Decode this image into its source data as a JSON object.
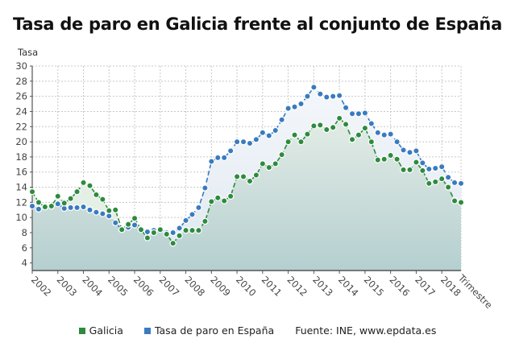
{
  "chart_data": {
    "type": "area",
    "title": "Tasa de paro en Galicia frente al conjunto de España",
    "xlabel": "Trimestre",
    "ylabel": "Tasa",
    "ylim": [
      3,
      30
    ],
    "yticks": [
      4,
      6,
      8,
      10,
      12,
      14,
      16,
      18,
      20,
      22,
      24,
      26,
      28,
      30
    ],
    "x_tick_labels": [
      "2002",
      "2003",
      "2004",
      "2005",
      "2006",
      "2007",
      "2008",
      "2009",
      "2010",
      "2011",
      "2012",
      "2013",
      "2014",
      "2015",
      "2016",
      "2017",
      "2018"
    ],
    "x_axis_title_visible": "Trimestre",
    "grid": true,
    "legend_position": "bottom",
    "x_start": "2002 Q1",
    "x_frequency": "quarterly",
    "series": [
      {
        "name": "Galicia",
        "color": "#2e8b3e",
        "values": [
          13.4,
          12.0,
          11.4,
          11.5,
          12.8,
          11.9,
          12.5,
          13.4,
          14.6,
          14.2,
          13.0,
          12.4,
          10.9,
          11.0,
          8.4,
          9.1,
          9.9,
          8.4,
          7.3,
          8.0,
          8.4,
          7.8,
          6.6,
          7.6,
          8.3,
          8.3,
          8.3,
          9.5,
          12.1,
          12.6,
          12.2,
          12.8,
          15.4,
          15.4,
          14.8,
          15.6,
          17.1,
          16.6,
          17.1,
          18.3,
          20.0,
          20.9,
          20.0,
          21.0,
          22.1,
          22.2,
          21.6,
          21.9,
          23.1,
          22.3,
          20.3,
          20.9,
          21.8,
          20.0,
          17.6,
          17.7,
          18.2,
          17.7,
          16.3,
          16.3,
          17.3,
          16.2,
          14.5,
          14.7,
          15.1,
          14.0,
          12.2,
          12.0
        ]
      },
      {
        "name": "Tasa de paro en España",
        "color": "#3a7bbf",
        "values": [
          11.5,
          11.1,
          11.4,
          11.5,
          11.8,
          11.2,
          11.3,
          11.3,
          11.4,
          11.0,
          10.7,
          10.5,
          10.2,
          9.3,
          8.4,
          8.7,
          9.0,
          8.5,
          8.1,
          8.3,
          8.5,
          8.0,
          8.0,
          8.6,
          9.6,
          10.4,
          11.3,
          13.9,
          17.4,
          17.9,
          17.9,
          18.8,
          20.0,
          20.0,
          19.8,
          20.3,
          21.2,
          20.8,
          21.5,
          22.9,
          24.4,
          24.6,
          25.0,
          26.0,
          27.2,
          26.3,
          25.9,
          26.0,
          26.1,
          24.5,
          23.7,
          23.7,
          23.8,
          22.4,
          21.2,
          20.9,
          21.0,
          20.0,
          18.9,
          18.6,
          18.8,
          17.2,
          16.4,
          16.5,
          16.7,
          15.3,
          14.6,
          14.5
        ]
      }
    ]
  },
  "header": {
    "title": "Tasa de paro en Galicia frente al conjunto de España",
    "y_axis_label": "Tasa"
  },
  "legend": {
    "items": [
      {
        "label": "Galicia",
        "color": "#2e8b3e"
      },
      {
        "label": "Tasa de paro en España",
        "color": "#3a7bbf"
      }
    ],
    "source": "Fuente: INE, www.epdata.es"
  }
}
